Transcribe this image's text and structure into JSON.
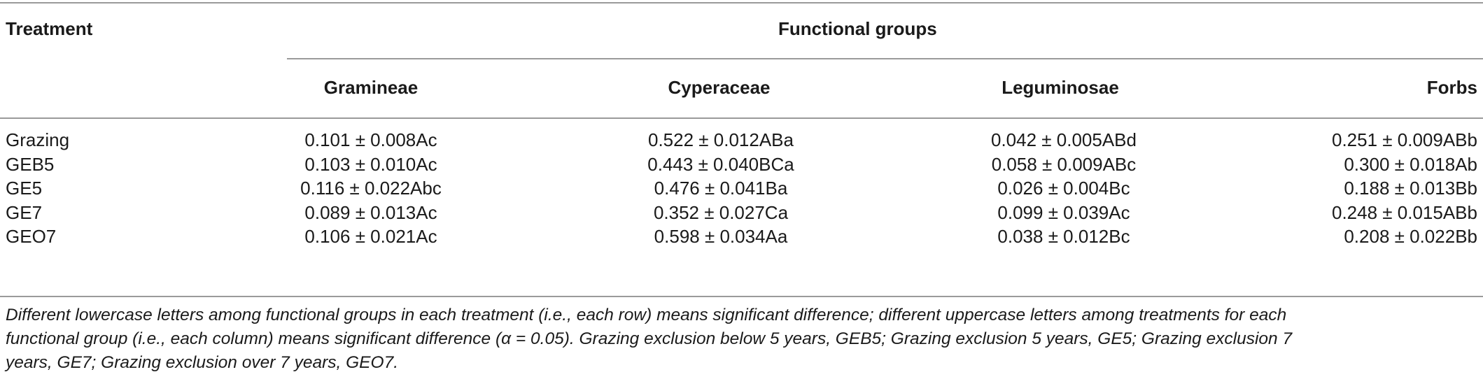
{
  "table": {
    "header": {
      "treatment": "Treatment",
      "functional_groups": "Functional groups",
      "columns": [
        "Gramineae",
        "Cyperaceae",
        "Leguminosae",
        "Forbs"
      ]
    },
    "rows": [
      {
        "label": "Grazing",
        "values": [
          "0.101 ± 0.008Ac",
          "0.522 ± 0.012ABa",
          "0.042 ± 0.005ABd",
          "0.251 ± 0.009ABb"
        ]
      },
      {
        "label": "GEB5",
        "values": [
          "0.103 ± 0.010Ac",
          "0.443 ± 0.040BCa",
          "0.058 ± 0.009ABc",
          "0.300 ± 0.018Ab"
        ]
      },
      {
        "label": "GE5",
        "values": [
          "0.116 ± 0.022Abc",
          "0.476 ± 0.041Ba",
          "0.026 ± 0.004Bc",
          "0.188 ± 0.013Bb"
        ]
      },
      {
        "label": "GE7",
        "values": [
          "0.089 ± 0.013Ac",
          "0.352 ± 0.027Ca",
          "0.099 ± 0.039Ac",
          "0.248 ± 0.015ABb"
        ]
      },
      {
        "label": "GEO7",
        "values": [
          "0.106 ± 0.021Ac",
          "0.598 ± 0.034Aa",
          "0.038 ± 0.012Bc",
          "0.208 ± 0.022Bb"
        ]
      }
    ],
    "footnote": [
      "Different lowercase letters among functional groups in each treatment (i.e., each row) means significant difference; different uppercase letters among treatments for each",
      "functional group (i.e., each column) means significant difference (α = 0.05). Grazing exclusion below 5 years, GEB5; Grazing exclusion 5 years, GE5; Grazing exclusion 7",
      "years, GE7; Grazing exclusion over 7 years, GEO7."
    ]
  }
}
